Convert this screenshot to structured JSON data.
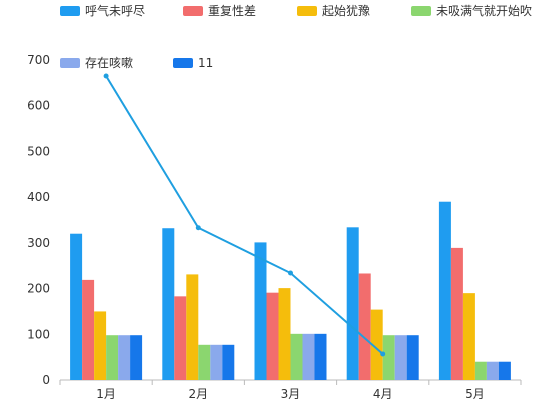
{
  "chart_data": {
    "type": "bar",
    "categories": [
      "1月",
      "2月",
      "3月",
      "4月",
      "5月"
    ],
    "ylim": [
      0,
      700
    ],
    "yticks": [
      0,
      100,
      200,
      300,
      400,
      500,
      600,
      700
    ],
    "grid": false,
    "legend_position": "top",
    "series": [
      {
        "name": "呼气未呼尽",
        "type": "bar",
        "color": "#1f9cf0",
        "values": [
          320,
          332,
          301,
          334,
          390
        ]
      },
      {
        "name": "重复性差",
        "type": "bar",
        "color": "#f26d6d",
        "values": [
          219,
          183,
          191,
          233,
          289
        ]
      },
      {
        "name": "起始犹豫",
        "type": "bar",
        "color": "#f5bd0c",
        "values": [
          150,
          231,
          201,
          154,
          190
        ]
      },
      {
        "name": "未吸满气就开始吹",
        "type": "bar",
        "color": "#8bd66f",
        "values": [
          98,
          77,
          101,
          98,
          40
        ]
      },
      {
        "name": "存在咳嗽",
        "type": "bar",
        "color": "#8aa9ec",
        "values": [
          98,
          77,
          101,
          98,
          40
        ]
      },
      {
        "name": "11",
        "type": "bar",
        "color": "#1677ea",
        "values": [
          98,
          77,
          101,
          98,
          40
        ]
      },
      {
        "name": "",
        "type": "line",
        "color": "#1f9fe0",
        "values": [
          665,
          333,
          234,
          57,
          null
        ]
      }
    ]
  }
}
